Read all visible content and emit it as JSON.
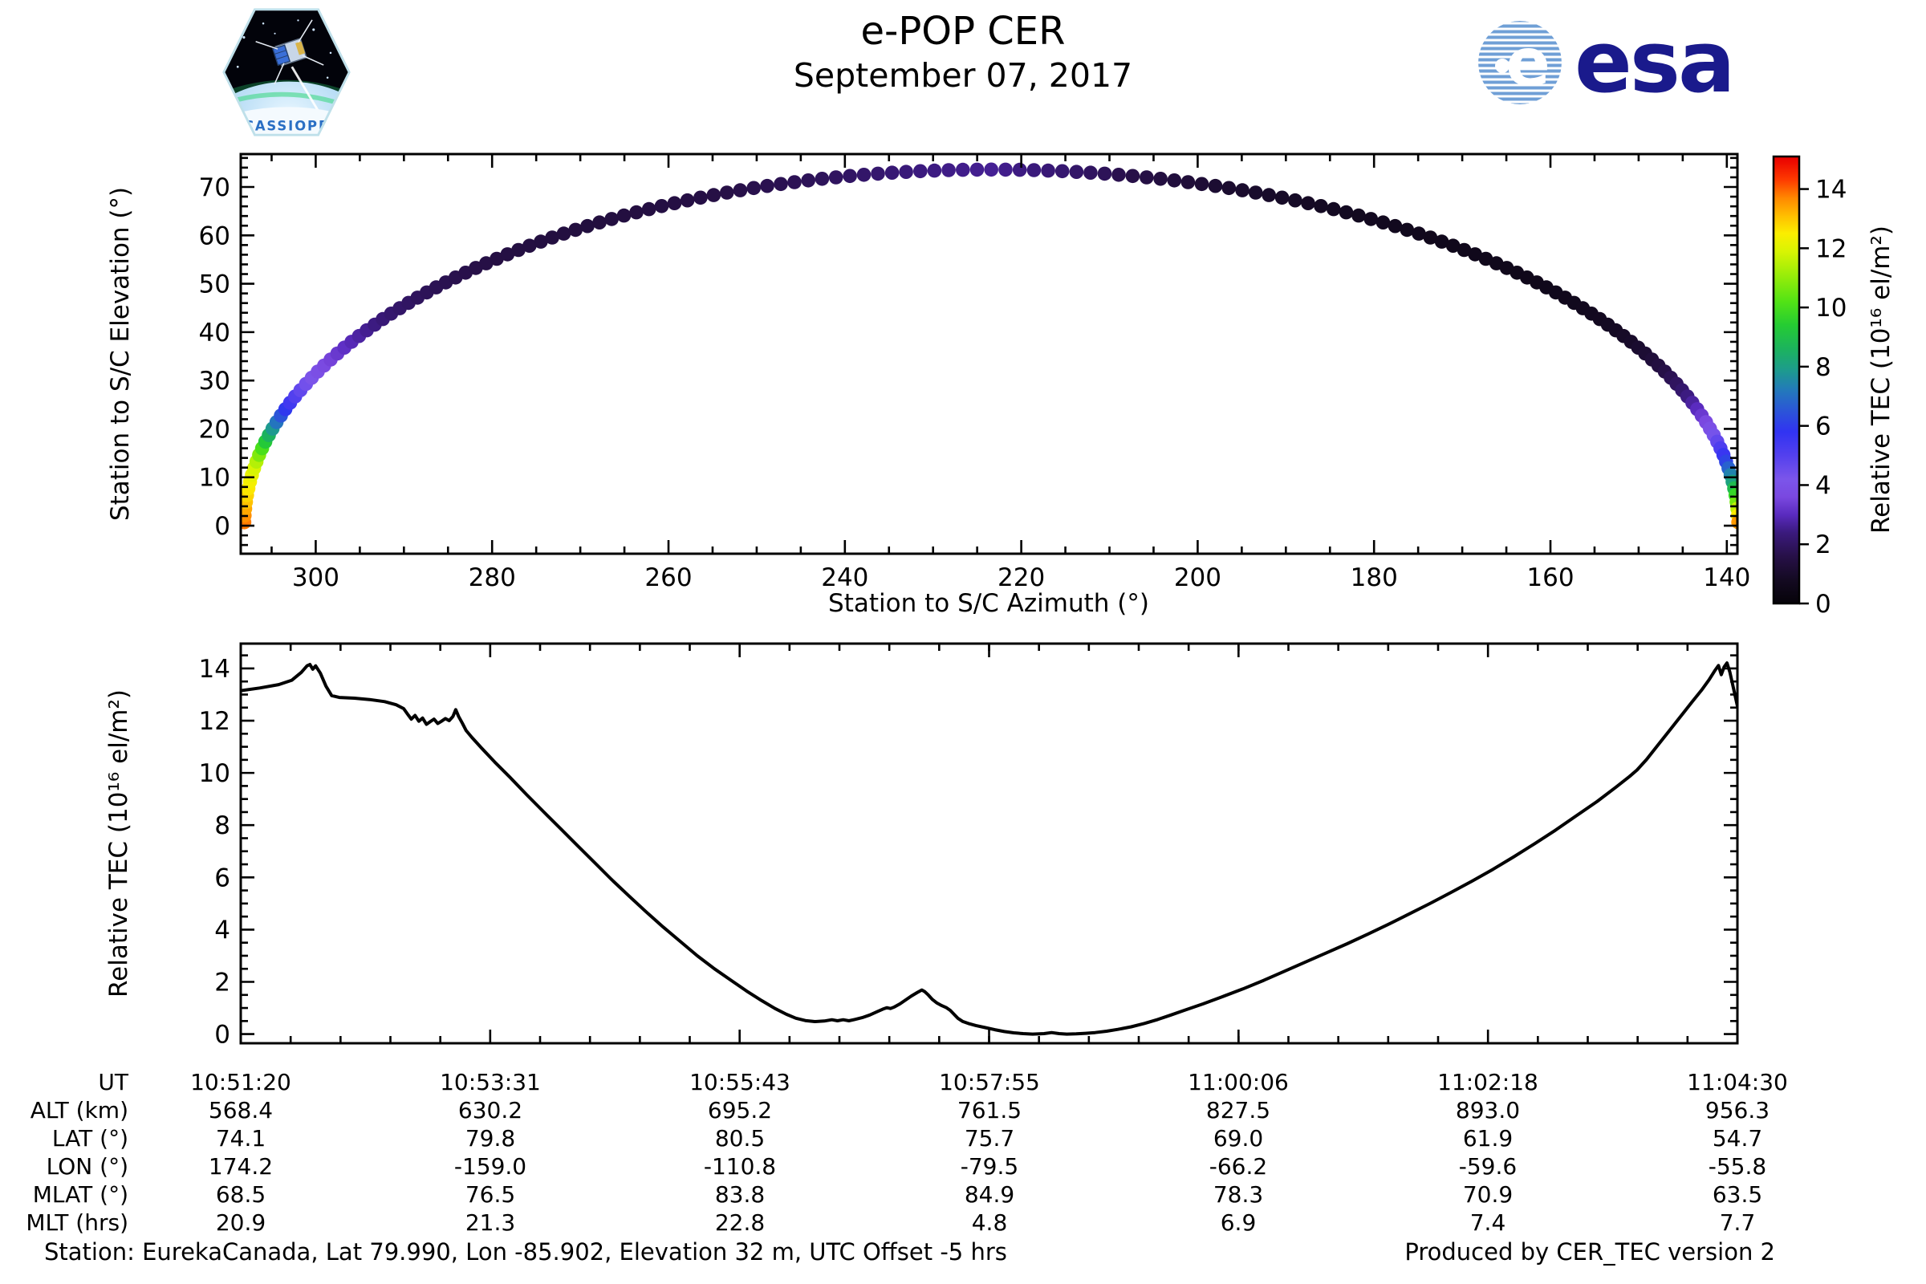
{
  "header": {
    "title": "e-POP CER",
    "date": "September 07, 2017",
    "cassiope_label": "CASSIOPE",
    "esa_wordmark": "esa"
  },
  "labels": {
    "top_xlabel": "Station to S/C Azimuth (°)",
    "top_ylabel": "Station to S/C Elevation (°)",
    "bottom_ylabel": "Relative TEC (10¹⁶ el/m²)",
    "colorbar_label": "Relative TEC (10¹⁶ el/m²)"
  },
  "footer": {
    "left": "Station: EurekaCanada, Lat 79.990, Lon -85.902, Elevation 32 m, UTC Offset -5 hrs",
    "right": "Produced by CER_TEC version 2"
  },
  "axis_table": {
    "row_labels": [
      "UT",
      "ALT (km)",
      "LAT (°)",
      "LON (°)",
      "MLAT (°)",
      "MLT (hrs)"
    ],
    "columns": [
      [
        "10:51:20",
        "568.4",
        "74.1",
        "174.2",
        "68.5",
        "20.9"
      ],
      [
        "10:53:31",
        "630.2",
        "79.8",
        "-159.0",
        "76.5",
        "21.3"
      ],
      [
        "10:55:43",
        "695.2",
        "80.5",
        "-110.8",
        "83.8",
        "22.8"
      ],
      [
        "10:57:55",
        "761.5",
        "75.7",
        "-79.5",
        "84.9",
        "4.8"
      ],
      [
        "11:00:06",
        "827.5",
        "69.0",
        "-66.2",
        "78.3",
        "6.9"
      ],
      [
        "11:02:18",
        "893.0",
        "61.9",
        "-59.6",
        "70.9",
        "7.4"
      ],
      [
        "11:04:30",
        "956.3",
        "54.7",
        "-55.8",
        "63.5",
        "7.7"
      ]
    ]
  },
  "chart_data": [
    {
      "id": "elevation-vs-azimuth",
      "type": "scatter",
      "xlabel": "Station to S/C Azimuth (°)",
      "ylabel": "Station to S/C Elevation (°)",
      "xlim": [
        308.5,
        138.8
      ],
      "ylim": [
        -5.8,
        76.8
      ],
      "x_ticks": [
        300,
        280,
        260,
        240,
        220,
        200,
        180,
        160,
        140
      ],
      "x_minor_step": 5,
      "y_ticks": [
        0,
        10,
        20,
        30,
        40,
        50,
        60,
        70
      ],
      "y_minor_step": 2,
      "arc": {
        "az_center": 223.4,
        "az_halfwidth": 84.7,
        "el_max": 73.6,
        "n_points": 165,
        "marker_radius": 8.8
      },
      "tec_profile_along_arc": [
        [
          0.0,
          13.9
        ],
        [
          0.01,
          13.6
        ],
        [
          0.02,
          13.1
        ],
        [
          0.03,
          12.7
        ],
        [
          0.04,
          12.35
        ],
        [
          0.05,
          12.0
        ],
        [
          0.058,
          11.4
        ],
        [
          0.066,
          10.5
        ],
        [
          0.075,
          9.4
        ],
        [
          0.085,
          8.2
        ],
        [
          0.095,
          7.0
        ],
        [
          0.105,
          6.0
        ],
        [
          0.115,
          5.2
        ],
        [
          0.13,
          4.4
        ],
        [
          0.145,
          3.8
        ],
        [
          0.16,
          3.3
        ],
        [
          0.18,
          2.7
        ],
        [
          0.2,
          2.2
        ],
        [
          0.23,
          1.8
        ],
        [
          0.27,
          1.5
        ],
        [
          0.32,
          1.4
        ],
        [
          0.38,
          1.55
        ],
        [
          0.43,
          1.9
        ],
        [
          0.47,
          2.4
        ],
        [
          0.5,
          2.6
        ],
        [
          0.53,
          2.2
        ],
        [
          0.56,
          1.6
        ],
        [
          0.6,
          1.1
        ],
        [
          0.65,
          0.8
        ],
        [
          0.7,
          0.6
        ],
        [
          0.76,
          0.55
        ],
        [
          0.8,
          0.7
        ],
        [
          0.83,
          1.0
        ],
        [
          0.855,
          1.5
        ],
        [
          0.875,
          2.1
        ],
        [
          0.89,
          2.8
        ],
        [
          0.9,
          3.3
        ],
        [
          0.91,
          3.8
        ],
        [
          0.92,
          4.4
        ],
        [
          0.93,
          5.1
        ],
        [
          0.94,
          5.9
        ],
        [
          0.95,
          6.9
        ],
        [
          0.96,
          8.0
        ],
        [
          0.97,
          9.3
        ],
        [
          0.978,
          10.5
        ],
        [
          0.985,
          11.6
        ],
        [
          0.99,
          12.4
        ],
        [
          0.995,
          13.2
        ],
        [
          1.0,
          14.0
        ]
      ],
      "colorbar": {
        "ticks": [
          0,
          2,
          4,
          6,
          8,
          10,
          12,
          14
        ],
        "vmin": 0,
        "vmax": 15.1,
        "colormap": [
          [
            0.0,
            "#060309"
          ],
          [
            0.8,
            "#140a22"
          ],
          [
            1.6,
            "#271048"
          ],
          [
            2.4,
            "#3b1a7e"
          ],
          [
            3.0,
            "#5a2bbf"
          ],
          [
            3.6,
            "#7a48e0"
          ],
          [
            4.2,
            "#7b55ea"
          ],
          [
            5.0,
            "#5340ee"
          ],
          [
            5.8,
            "#3133f2"
          ],
          [
            6.5,
            "#2b55d8"
          ],
          [
            7.2,
            "#2379bb"
          ],
          [
            7.9,
            "#1d9c8c"
          ],
          [
            8.6,
            "#1cb35d"
          ],
          [
            9.4,
            "#25cc33"
          ],
          [
            10.2,
            "#52e315"
          ],
          [
            11.0,
            "#92ec0a"
          ],
          [
            11.9,
            "#d9f403"
          ],
          [
            12.5,
            "#fbee00"
          ],
          [
            13.1,
            "#ffbe00"
          ],
          [
            13.7,
            "#ff8800"
          ],
          [
            14.3,
            "#fe3c00"
          ],
          [
            14.9,
            "#ee0c00"
          ],
          [
            15.1,
            "#e70000"
          ]
        ]
      }
    },
    {
      "id": "tec-vs-time",
      "type": "line",
      "ylabel": "Relative TEC (10¹⁶ el/m²)",
      "ylim": [
        -0.35,
        14.95
      ],
      "y_ticks": [
        0,
        2,
        4,
        6,
        8,
        10,
        12,
        14
      ],
      "y_minor_step": 0.5,
      "duration_seconds": 790,
      "x_tick_labels": [
        "10:51:20",
        "10:53:31",
        "10:55:43",
        "10:57:55",
        "11:00:06",
        "11:02:18",
        "11:04:30"
      ],
      "x_minor_per_interval": 5,
      "line_color": "#000000",
      "series_t_tec": [
        [
          0,
          13.15
        ],
        [
          10,
          13.25
        ],
        [
          20,
          13.38
        ],
        [
          27,
          13.55
        ],
        [
          32,
          13.85
        ],
        [
          35,
          14.1
        ],
        [
          36.5,
          14.15
        ],
        [
          38,
          13.97
        ],
        [
          39.5,
          14.1
        ],
        [
          42,
          13.82
        ],
        [
          45,
          13.32
        ],
        [
          48,
          12.96
        ],
        [
          52,
          12.89
        ],
        [
          60,
          12.86
        ],
        [
          68,
          12.81
        ],
        [
          76,
          12.73
        ],
        [
          82,
          12.61
        ],
        [
          86,
          12.46
        ],
        [
          88,
          12.26
        ],
        [
          90,
          12.06
        ],
        [
          92,
          12.2
        ],
        [
          94,
          11.98
        ],
        [
          96,
          12.1
        ],
        [
          98,
          11.86
        ],
        [
          100,
          11.96
        ],
        [
          102,
          12.06
        ],
        [
          104,
          11.89
        ],
        [
          106,
          11.98
        ],
        [
          108,
          12.08
        ],
        [
          110,
          12.0
        ],
        [
          112,
          12.16
        ],
        [
          113.5,
          12.42
        ],
        [
          115,
          12.16
        ],
        [
          117,
          11.9
        ],
        [
          119,
          11.62
        ],
        [
          122,
          11.36
        ],
        [
          127,
          10.96
        ],
        [
          134,
          10.42
        ],
        [
          142,
          9.84
        ],
        [
          151,
          9.16
        ],
        [
          160,
          8.5
        ],
        [
          169,
          7.85
        ],
        [
          178,
          7.2
        ],
        [
          187,
          6.55
        ],
        [
          196,
          5.9
        ],
        [
          205,
          5.28
        ],
        [
          214,
          4.68
        ],
        [
          223,
          4.1
        ],
        [
          232,
          3.55
        ],
        [
          241,
          3.0
        ],
        [
          250,
          2.5
        ],
        [
          259,
          2.05
        ],
        [
          267,
          1.65
        ],
        [
          275,
          1.28
        ],
        [
          282,
          0.98
        ],
        [
          288,
          0.76
        ],
        [
          293,
          0.61
        ],
        [
          298,
          0.52
        ],
        [
          303,
          0.48
        ],
        [
          308,
          0.5
        ],
        [
          312,
          0.55
        ],
        [
          315,
          0.51
        ],
        [
          318,
          0.55
        ],
        [
          321,
          0.51
        ],
        [
          324,
          0.56
        ],
        [
          328,
          0.63
        ],
        [
          332,
          0.73
        ],
        [
          336,
          0.86
        ],
        [
          339,
          0.96
        ],
        [
          341,
          1.01
        ],
        [
          343,
          0.98
        ],
        [
          345,
          1.04
        ],
        [
          348,
          1.16
        ],
        [
          351,
          1.31
        ],
        [
          354,
          1.46
        ],
        [
          357,
          1.59
        ],
        [
          359.5,
          1.69
        ],
        [
          361,
          1.63
        ],
        [
          363,
          1.49
        ],
        [
          365,
          1.33
        ],
        [
          367.5,
          1.19
        ],
        [
          370,
          1.09
        ],
        [
          372.5,
          1.01
        ],
        [
          374.5,
          0.91
        ],
        [
          376.5,
          0.76
        ],
        [
          378.5,
          0.61
        ],
        [
          381,
          0.49
        ],
        [
          384,
          0.41
        ],
        [
          388,
          0.33
        ],
        [
          393,
          0.25
        ],
        [
          398,
          0.17
        ],
        [
          403,
          0.1
        ],
        [
          408,
          0.05
        ],
        [
          413,
          0.02
        ],
        [
          418,
          0.0
        ],
        [
          424,
          0.02
        ],
        [
          428,
          0.06
        ],
        [
          432,
          0.02
        ],
        [
          436,
          0.0
        ],
        [
          441,
          0.01
        ],
        [
          446,
          0.03
        ],
        [
          451,
          0.06
        ],
        [
          457,
          0.11
        ],
        [
          463,
          0.18
        ],
        [
          470,
          0.28
        ],
        [
          477,
          0.41
        ],
        [
          484,
          0.56
        ],
        [
          491,
          0.73
        ],
        [
          498,
          0.91
        ],
        [
          508,
          1.16
        ],
        [
          518,
          1.43
        ],
        [
          529,
          1.73
        ],
        [
          540,
          2.06
        ],
        [
          551,
          2.41
        ],
        [
          562,
          2.76
        ],
        [
          573,
          3.11
        ],
        [
          584,
          3.46
        ],
        [
          595,
          3.83
        ],
        [
          606,
          4.21
        ],
        [
          617,
          4.61
        ],
        [
          628,
          5.01
        ],
        [
          639,
          5.43
        ],
        [
          650,
          5.86
        ],
        [
          661,
          6.31
        ],
        [
          672,
          6.79
        ],
        [
          683,
          7.29
        ],
        [
          694,
          7.81
        ],
        [
          705,
          8.36
        ],
        [
          716,
          8.91
        ],
        [
          726,
          9.46
        ],
        [
          733,
          9.86
        ],
        [
          737,
          10.11
        ],
        [
          742,
          10.51
        ],
        [
          748,
          11.06
        ],
        [
          754,
          11.61
        ],
        [
          760,
          12.16
        ],
        [
          766,
          12.71
        ],
        [
          771,
          13.16
        ],
        [
          775,
          13.56
        ],
        [
          778,
          13.91
        ],
        [
          780,
          14.11
        ],
        [
          781.5,
          13.76
        ],
        [
          783,
          14.06
        ],
        [
          784.5,
          14.21
        ],
        [
          786,
          13.86
        ],
        [
          788,
          13.21
        ],
        [
          790,
          12.56
        ]
      ]
    }
  ]
}
